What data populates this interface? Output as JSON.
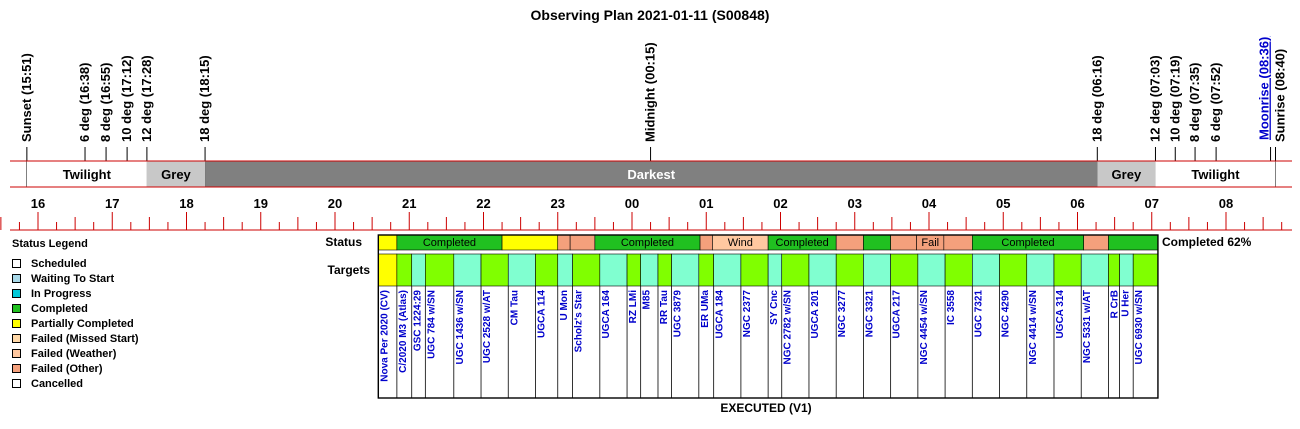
{
  "chart_data": {
    "type": "timeline",
    "title": "Observing Plan 2021-01-11 (S00848)",
    "footer": "EXECUTED (V1)",
    "completion_label": "Completed 62%",
    "completion_percent": 62,
    "row_labels": {
      "status": "Status",
      "targets": "Targets"
    },
    "events": [
      {
        "label": "Sunset (15:51)",
        "time": "15:51",
        "color": "#000000"
      },
      {
        "label": "6 deg (16:38)",
        "time": "16:38",
        "color": "#000000"
      },
      {
        "label": "8 deg (16:55)",
        "time": "16:55",
        "color": "#000000"
      },
      {
        "label": "10 deg (17:12)",
        "time": "17:12",
        "color": "#000000"
      },
      {
        "label": "12 deg (17:28)",
        "time": "17:28",
        "color": "#000000"
      },
      {
        "label": "18 deg (18:15)",
        "time": "18:15",
        "color": "#000000"
      },
      {
        "label": "Midnight (00:15)",
        "time": "00:15",
        "color": "#000000"
      },
      {
        "label": "18 deg (06:16)",
        "time": "06:16",
        "color": "#000000"
      },
      {
        "label": "12 deg (07:03)",
        "time": "07:03",
        "color": "#000000"
      },
      {
        "label": "10 deg (07:19)",
        "time": "07:19",
        "color": "#000000"
      },
      {
        "label": "8 deg (07:35)",
        "time": "07:35",
        "color": "#000000"
      },
      {
        "label": "6 deg (07:52)",
        "time": "07:52",
        "color": "#000000"
      },
      {
        "label": "Moonrise (08:36)",
        "time": "08:36",
        "color": "#0000cc"
      },
      {
        "label": "Sunrise (08:40)",
        "time": "08:40",
        "color": "#000000"
      }
    ],
    "phases": [
      {
        "label": "Twilight",
        "start": "15:51",
        "end": "17:28",
        "color": "#ffffff",
        "text_color": "#000000"
      },
      {
        "label": "Grey",
        "start": "17:28",
        "end": "18:15",
        "color": "#c8c8c8",
        "text_color": "#000000"
      },
      {
        "label": "Darkest",
        "start": "18:15",
        "end": "06:16",
        "color": "#808080",
        "text_color": "#ffffff"
      },
      {
        "label": "Grey",
        "start": "06:16",
        "end": "07:03",
        "color": "#c8c8c8",
        "text_color": "#000000"
      },
      {
        "label": "Twilight",
        "start": "07:03",
        "end": "08:40",
        "color": "#ffffff",
        "text_color": "#000000"
      }
    ],
    "hour_ticks": [
      "16",
      "17",
      "18",
      "19",
      "20",
      "21",
      "22",
      "23",
      "00",
      "01",
      "02",
      "03",
      "04",
      "05",
      "06",
      "07",
      "08"
    ],
    "status_segments": [
      {
        "start": "20:35",
        "end": "20:50",
        "status": "Partially Completed",
        "label": ""
      },
      {
        "start": "20:50",
        "end": "22:15",
        "status": "Completed",
        "label": "Completed"
      },
      {
        "start": "22:15",
        "end": "23:00",
        "status": "Partially Completed",
        "label": ""
      },
      {
        "start": "23:00",
        "end": "23:10",
        "status": "Failed (Other)",
        "label": ""
      },
      {
        "start": "23:10",
        "end": "23:30",
        "status": "Failed (Other)",
        "label": ""
      },
      {
        "start": "23:30",
        "end": "00:55",
        "status": "Completed",
        "label": "Completed"
      },
      {
        "start": "00:55",
        "end": "01:05",
        "status": "Failed (Other)",
        "label": ""
      },
      {
        "start": "01:05",
        "end": "01:50",
        "status": "Failed (Weather)",
        "label": "Wind"
      },
      {
        "start": "01:50",
        "end": "02:45",
        "status": "Completed",
        "label": "Completed"
      },
      {
        "start": "02:45",
        "end": "03:07",
        "status": "Failed (Other)",
        "label": ""
      },
      {
        "start": "03:07",
        "end": "03:29",
        "status": "Completed",
        "label": ""
      },
      {
        "start": "03:29",
        "end": "03:50",
        "status": "Failed (Other)",
        "label": ""
      },
      {
        "start": "03:50",
        "end": "04:12",
        "status": "Failed (Other)",
        "label": "Fail"
      },
      {
        "start": "04:12",
        "end": "04:35",
        "status": "Failed (Other)",
        "label": ""
      },
      {
        "start": "04:35",
        "end": "06:05",
        "status": "Completed",
        "label": "Completed"
      },
      {
        "start": "06:05",
        "end": "06:25",
        "status": "Failed (Other)",
        "label": ""
      },
      {
        "start": "06:25",
        "end": "07:05",
        "status": "Completed",
        "label": ""
      }
    ],
    "targets": [
      {
        "name": "Nova Per 2020 (CV)",
        "start": "20:35",
        "end": "20:50",
        "color": "#ffff00"
      },
      {
        "name": "C/2020 M3 (Atlas)",
        "start": "20:50",
        "end": "21:02",
        "color": "#80ff00"
      },
      {
        "name": "GSC 1224:29",
        "start": "21:02",
        "end": "21:13",
        "color": "#80ffd0"
      },
      {
        "name": "UGC 784 w/SN",
        "start": "21:13",
        "end": "21:36",
        "color": "#80ff00"
      },
      {
        "name": "UGC 1436 w/SN",
        "start": "21:36",
        "end": "21:58",
        "color": "#80ffd0"
      },
      {
        "name": "UGC 2528 w/AT",
        "start": "21:58",
        "end": "22:20",
        "color": "#80ff00"
      },
      {
        "name": "CM Tau",
        "start": "22:20",
        "end": "22:42",
        "color": "#80ffd0"
      },
      {
        "name": "UGCA 114",
        "start": "22:42",
        "end": "23:00",
        "color": "#80ff00"
      },
      {
        "name": "U Mon",
        "start": "23:00",
        "end": "23:12",
        "color": "#80ffd0"
      },
      {
        "name": "Scholz's Star",
        "start": "23:12",
        "end": "23:34",
        "color": "#80ff00"
      },
      {
        "name": "UGCA 164",
        "start": "23:34",
        "end": "23:56",
        "color": "#80ffd0"
      },
      {
        "name": "RZ LMi",
        "start": "23:56",
        "end": "00:07",
        "color": "#80ff00"
      },
      {
        "name": "M85",
        "start": "00:07",
        "end": "00:21",
        "color": "#80ffd0"
      },
      {
        "name": "RR Tau",
        "start": "00:21",
        "end": "00:32",
        "color": "#80ff00"
      },
      {
        "name": "UGC 3879",
        "start": "00:32",
        "end": "00:54",
        "color": "#80ffd0"
      },
      {
        "name": "ER UMa",
        "start": "00:54",
        "end": "01:06",
        "color": "#80ff00"
      },
      {
        "name": "UGCA 184",
        "start": "01:06",
        "end": "01:28",
        "color": "#80ffd0"
      },
      {
        "name": "NGC 2377",
        "start": "01:28",
        "end": "01:50",
        "color": "#80ff00"
      },
      {
        "name": "SY Cnc",
        "start": "01:50",
        "end": "02:01",
        "color": "#80ffd0"
      },
      {
        "name": "NGC 2782 w/SN",
        "start": "02:01",
        "end": "02:23",
        "color": "#80ff00"
      },
      {
        "name": "UGCA 201",
        "start": "02:23",
        "end": "02:45",
        "color": "#80ffd0"
      },
      {
        "name": "NGC 3277",
        "start": "02:45",
        "end": "03:07",
        "color": "#80ff00"
      },
      {
        "name": "NGC 3321",
        "start": "03:07",
        "end": "03:29",
        "color": "#80ffd0"
      },
      {
        "name": "UGCA 217",
        "start": "03:29",
        "end": "03:51",
        "color": "#80ff00"
      },
      {
        "name": "NGC 4454 w/SN",
        "start": "03:51",
        "end": "04:13",
        "color": "#80ffd0"
      },
      {
        "name": "IC 3558",
        "start": "04:13",
        "end": "04:35",
        "color": "#80ff00"
      },
      {
        "name": "UGC 7321",
        "start": "04:35",
        "end": "04:57",
        "color": "#80ffd0"
      },
      {
        "name": "NGC 4290",
        "start": "04:57",
        "end": "05:19",
        "color": "#80ff00"
      },
      {
        "name": "NGC 4414 w/SN",
        "start": "05:19",
        "end": "05:41",
        "color": "#80ffd0"
      },
      {
        "name": "UGCA 314",
        "start": "05:41",
        "end": "06:03",
        "color": "#80ff00"
      },
      {
        "name": "NGC 5331 w/AT",
        "start": "06:03",
        "end": "06:25",
        "color": "#80ffd0"
      },
      {
        "name": "R CrB",
        "start": "06:25",
        "end": "06:34",
        "color": "#80ff00"
      },
      {
        "name": "U Her",
        "start": "06:34",
        "end": "06:45",
        "color": "#80ffd0"
      },
      {
        "name": "UGC 6930 w/SN",
        "start": "06:45",
        "end": "07:05",
        "color": "#80ff00"
      }
    ],
    "legend": {
      "title": "Status Legend",
      "items": [
        {
          "label": "Scheduled",
          "color": "#ffffff"
        },
        {
          "label": "Waiting To Start",
          "color": "#a8d8e8"
        },
        {
          "label": "In Progress",
          "color": "#00c8d8"
        },
        {
          "label": "Completed",
          "color": "#20c020"
        },
        {
          "label": "Partially Completed",
          "color": "#ffff00"
        },
        {
          "label": "Failed (Missed Start)",
          "color": "#ffd8a8"
        },
        {
          "label": "Failed (Weather)",
          "color": "#ffc8a0"
        },
        {
          "label": "Failed (Other)",
          "color": "#f4a07c"
        },
        {
          "label": "Cancelled",
          "color": "#ffffff"
        }
      ]
    },
    "status_colors": {
      "Completed": "#20c020",
      "Partially Completed": "#ffff00",
      "Failed (Weather)": "#ffc8a0",
      "Failed (Other)": "#f4a07c"
    },
    "colors": {
      "axis_line": "#cc0000",
      "target_text": "#0000cc"
    }
  }
}
